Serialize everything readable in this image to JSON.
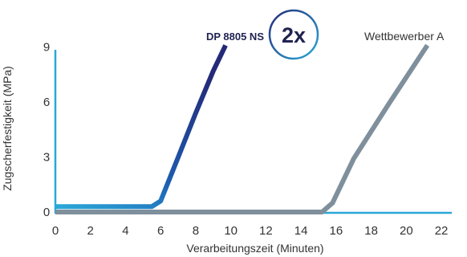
{
  "chart_data": {
    "type": "line",
    "xlabel": "Verarbeitungszeit (Minuten)",
    "ylabel": "Zugscherfestigkeit (MPa)",
    "x_ticks": [
      "0",
      "2",
      "4",
      "6",
      "8",
      "10",
      "12",
      "14",
      "16",
      "18",
      "20",
      "22"
    ],
    "y_ticks": [
      "0",
      "3",
      "6",
      "9"
    ],
    "xlim": [
      0,
      22.5
    ],
    "ylim": [
      0,
      9.6
    ],
    "grid": false,
    "series": [
      {
        "name": "DP 8805 NS",
        "color": "#1f3a93",
        "points": [
          [
            0,
            0.3
          ],
          [
            5.5,
            0.3
          ],
          [
            6.0,
            0.6
          ],
          [
            7.0,
            3.0
          ],
          [
            8.0,
            5.4
          ],
          [
            9.0,
            7.7
          ],
          [
            9.7,
            9.1
          ]
        ]
      },
      {
        "name": "Wettbewerber A",
        "color": "#7f8f9c",
        "points": [
          [
            0,
            0.0
          ],
          [
            15.2,
            0.0
          ],
          [
            15.8,
            0.5
          ],
          [
            17.0,
            2.9
          ],
          [
            19.0,
            5.9
          ],
          [
            21.2,
            9.1
          ]
        ]
      }
    ],
    "badge": "2x"
  }
}
